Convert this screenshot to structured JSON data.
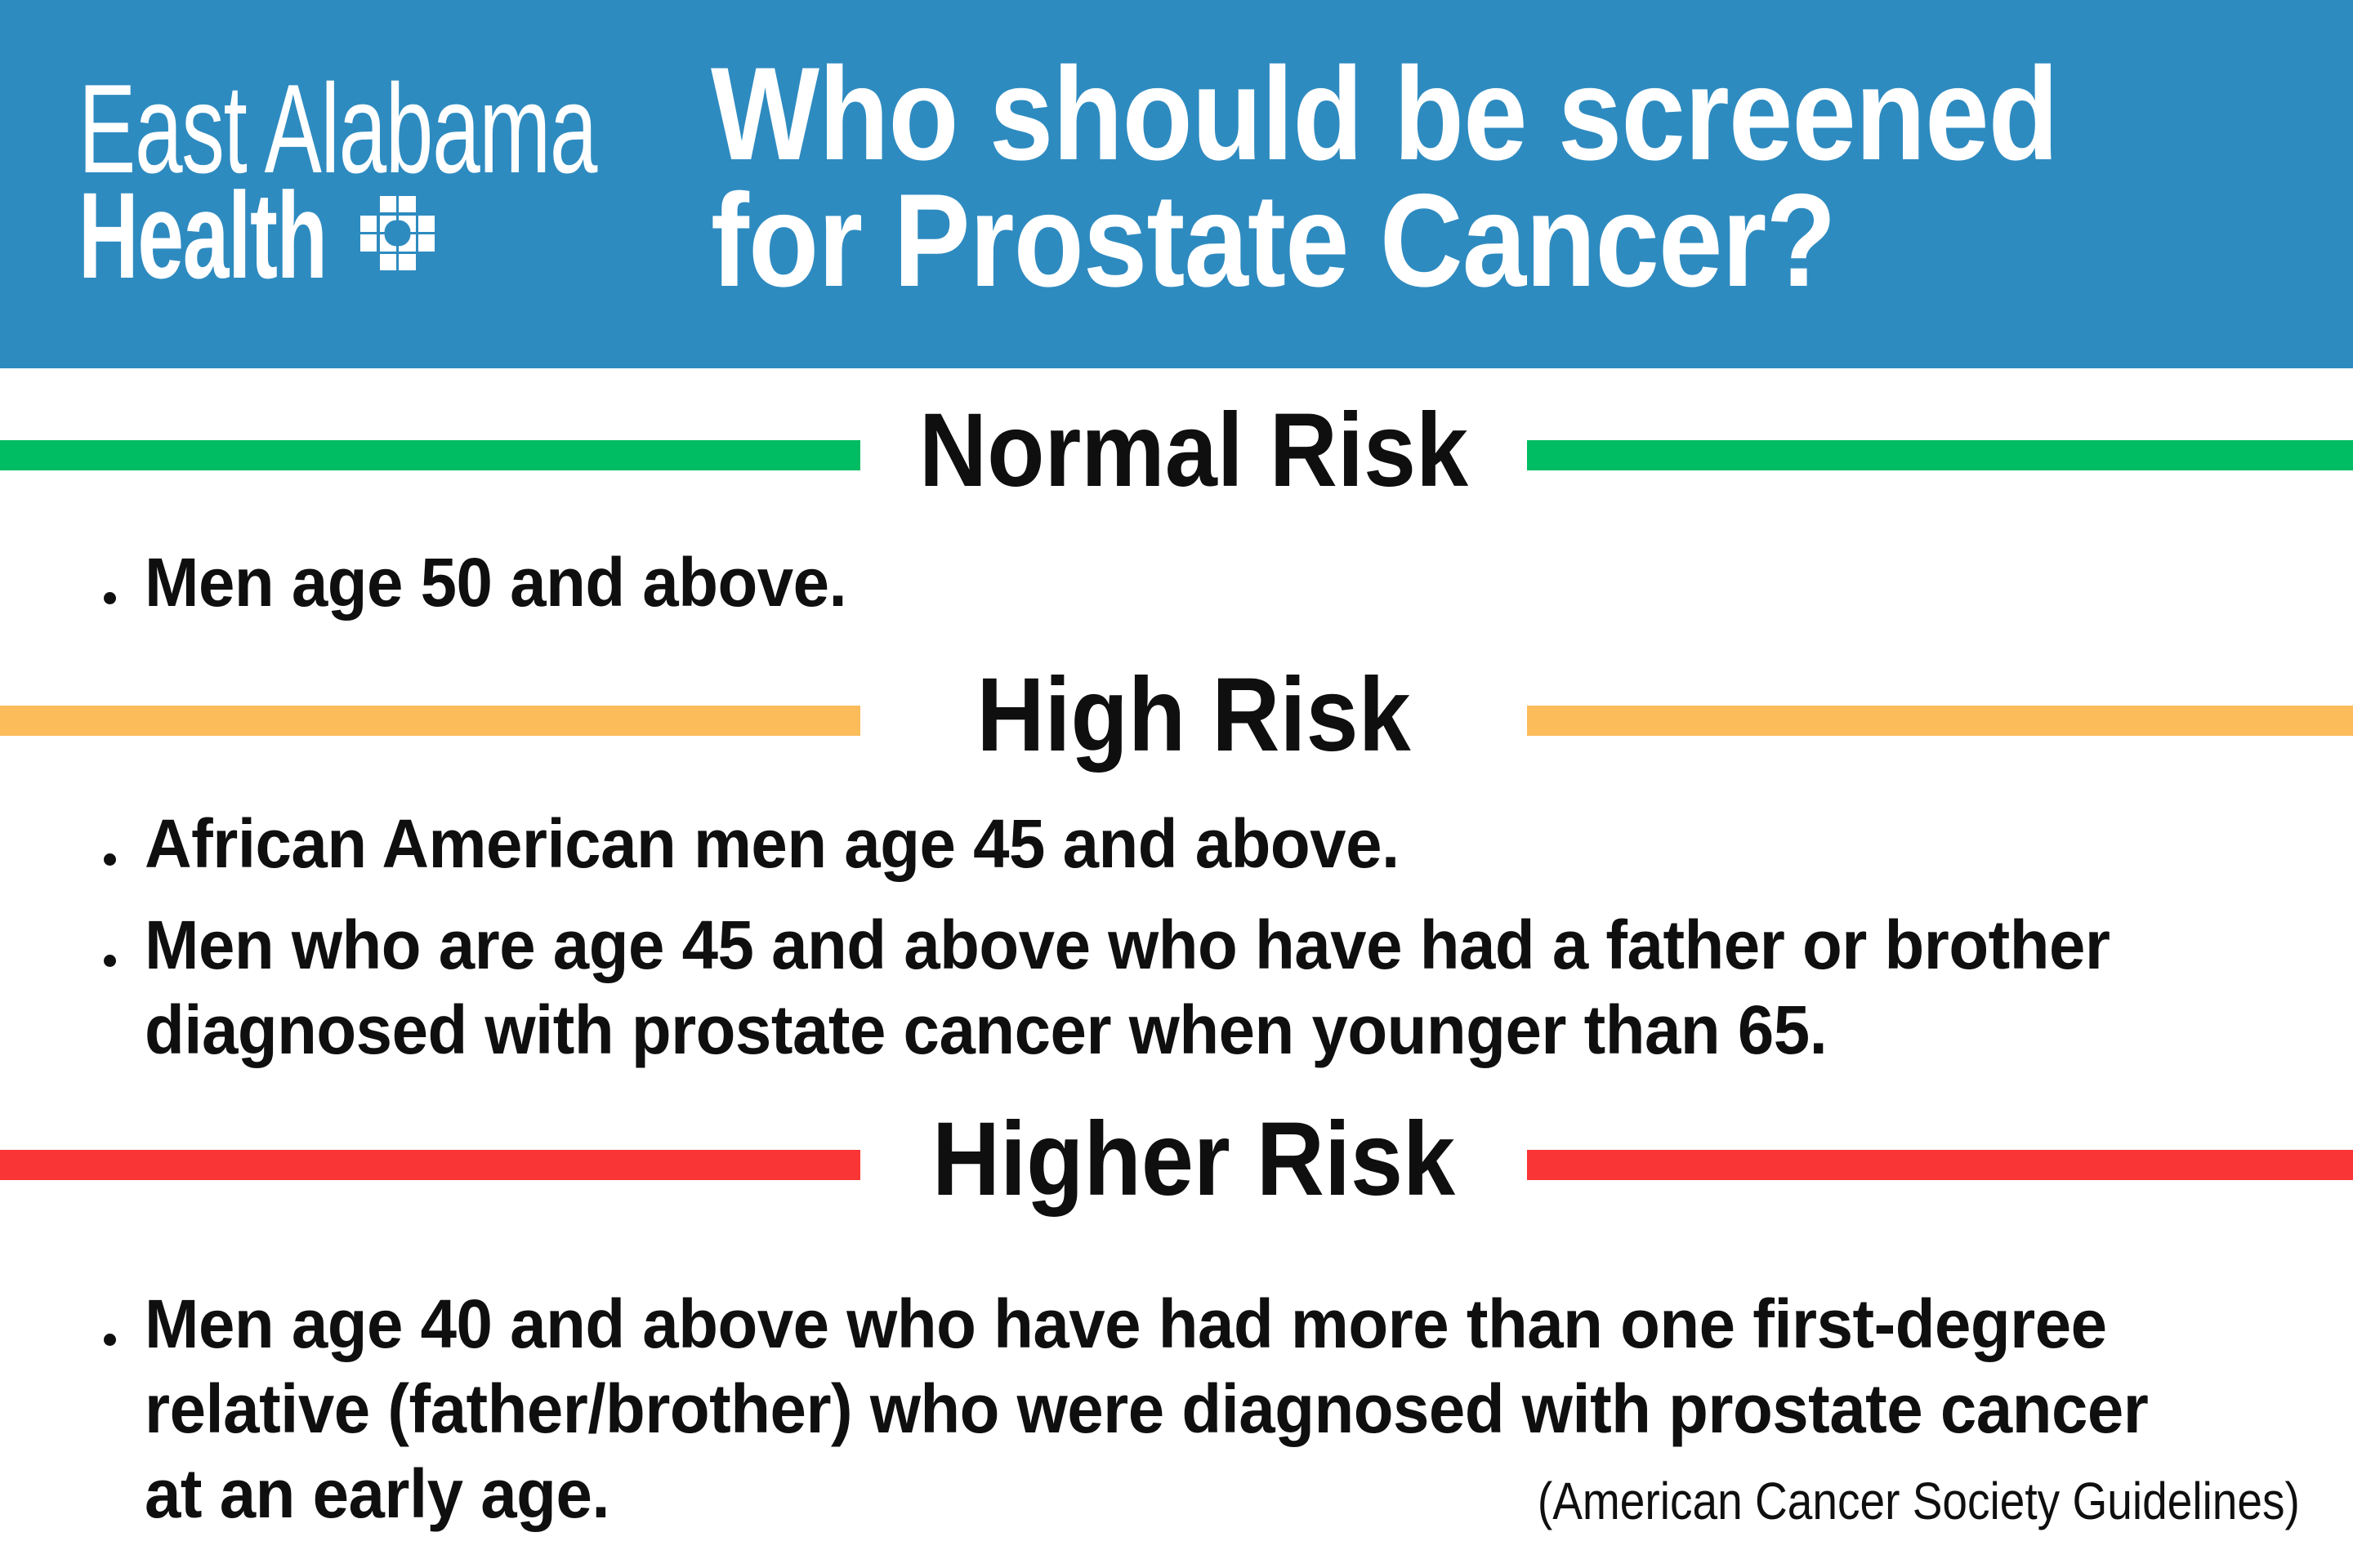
{
  "colors": {
    "header_blue": "#2E8BC0",
    "normal_green": "#00BC62",
    "high_orange": "#FBBC59",
    "higher_red": "#FA3535",
    "text_black": "#0f0f0f",
    "white": "#ffffff"
  },
  "header": {
    "logo": {
      "line1": "East Alabama",
      "line2": "Health",
      "icon": "pixel-cross-icon"
    },
    "title_lines": [
      "Who should be screened",
      "for Prostate Cancer?"
    ]
  },
  "sections": [
    {
      "label": "Normal Risk",
      "color": "#00BC62",
      "bullets": [
        [
          "Men age 50 and above."
        ]
      ]
    },
    {
      "label": "High Risk",
      "color": "#FBBC59",
      "bullets": [
        [
          "African American men age 45 and above."
        ],
        [
          "Men who are age 45 and above who have had a father or brother",
          "diagnosed with prostate cancer when younger than 65."
        ]
      ]
    },
    {
      "label": "Higher Risk",
      "color": "#FA3535",
      "bullets": [
        [
          "Men age 40 and above who have had more than one first-degree",
          "relative (father/brother) who were diagnosed with prostate cancer",
          "at an early age."
        ]
      ]
    }
  ],
  "footer": {
    "source": "(American Cancer Society Guidelines)"
  }
}
